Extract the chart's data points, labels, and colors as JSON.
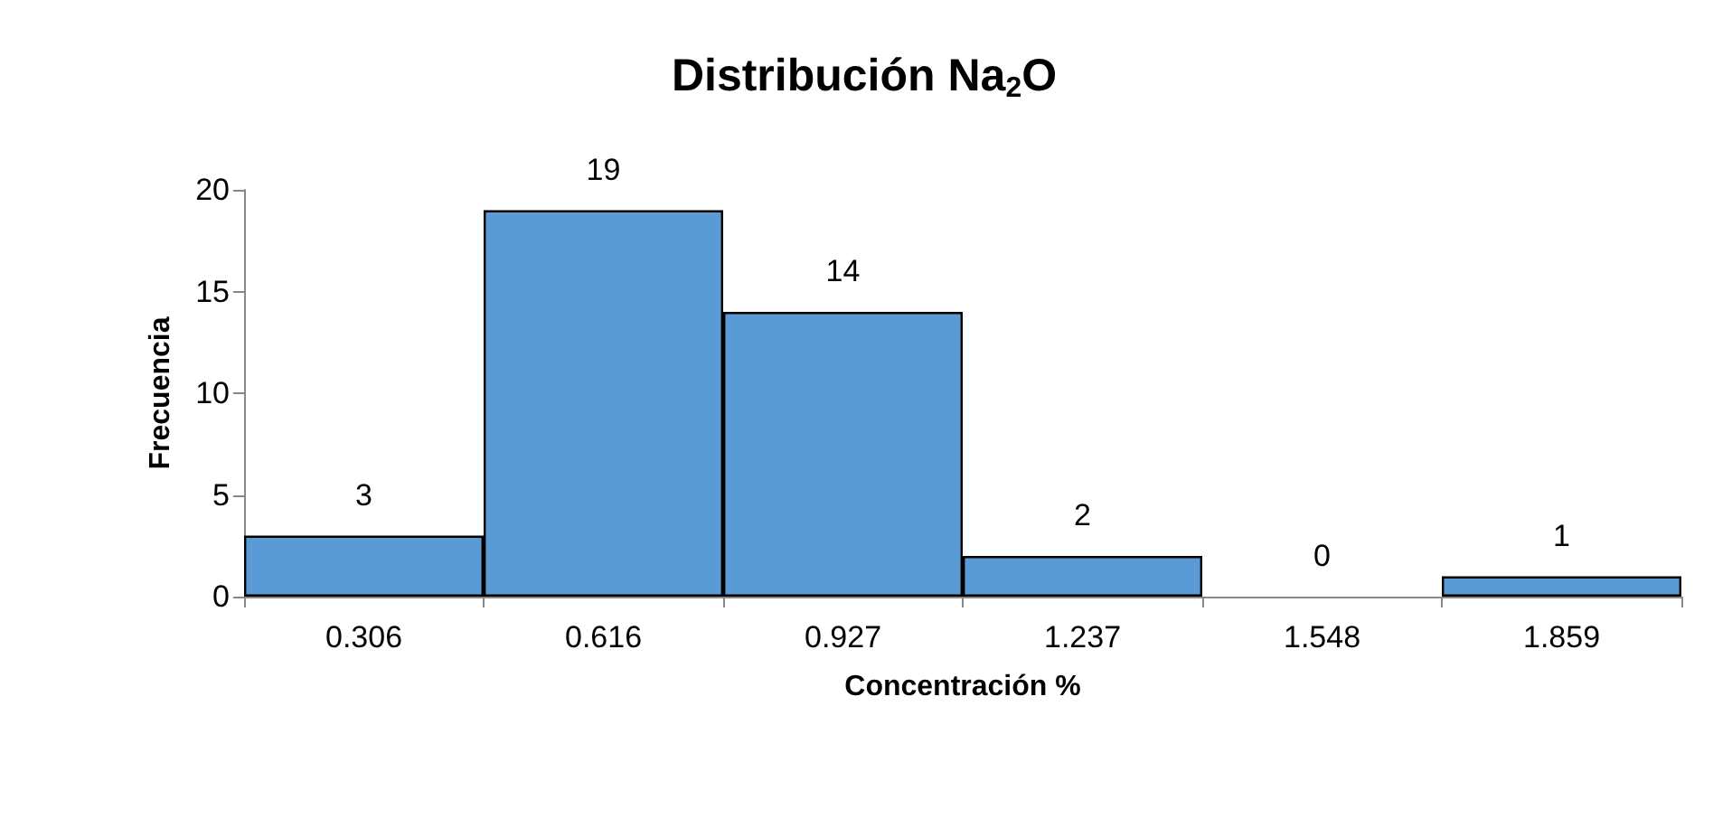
{
  "chart_data": {
    "type": "bar",
    "title": "Distribución Na$_{2}$O",
    "xlabel": "Concentración %",
    "ylabel": "Frecuencia",
    "categories": [
      "0.306",
      "0.616",
      "0.927",
      "1.237",
      "1.548",
      "1.859"
    ],
    "values": [
      3,
      19,
      14,
      2,
      0,
      1
    ],
    "color": "#5b9bd5",
    "ylim": [
      0,
      20
    ],
    "yticks": [
      0,
      5,
      10,
      15,
      20
    ],
    "grid": false,
    "data_labels": true
  }
}
